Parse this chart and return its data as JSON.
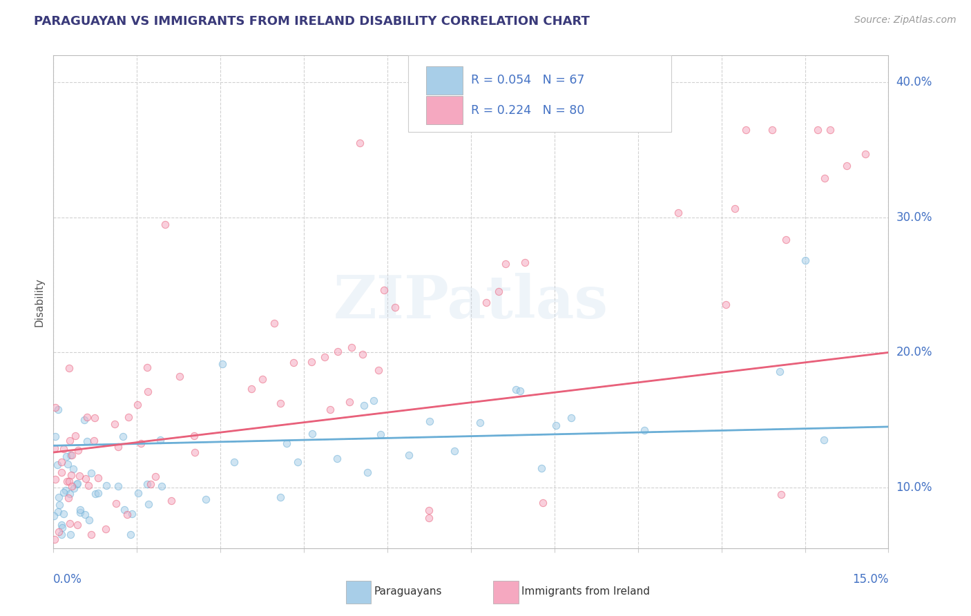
{
  "title": "PARAGUAYAN VS IMMIGRANTS FROM IRELAND DISABILITY CORRELATION CHART",
  "source": "Source: ZipAtlas.com",
  "ylabel": "Disability",
  "xmin": 0.0,
  "xmax": 0.15,
  "ymin": 0.055,
  "ymax": 0.42,
  "yticks": [
    0.1,
    0.2,
    0.3,
    0.4
  ],
  "ytick_labels": [
    "10.0%",
    "20.0%",
    "30.0%",
    "40.0%"
  ],
  "xtick_left": "0.0%",
  "xtick_right": "15.0%",
  "legend_text1": "R = 0.054   N = 67",
  "legend_text2": "R = 0.224   N = 80",
  "color_paraguayan": "#A8CEE8",
  "color_ireland": "#F5A8C0",
  "color_line_paraguayan": "#6AAED6",
  "color_line_ireland": "#E8607A",
  "color_blue_text": "#4472C4",
  "color_title": "#3A3A7A",
  "watermark": "ZIPatlas",
  "background": "#ffffff",
  "grid_color": "#cccccc",
  "scatter_size": 55,
  "scatter_alpha": 0.55,
  "line_width": 2.0,
  "bottom_legend_paraguayans": "Paraguayans",
  "bottom_legend_ireland": "Immigrants from Ireland"
}
